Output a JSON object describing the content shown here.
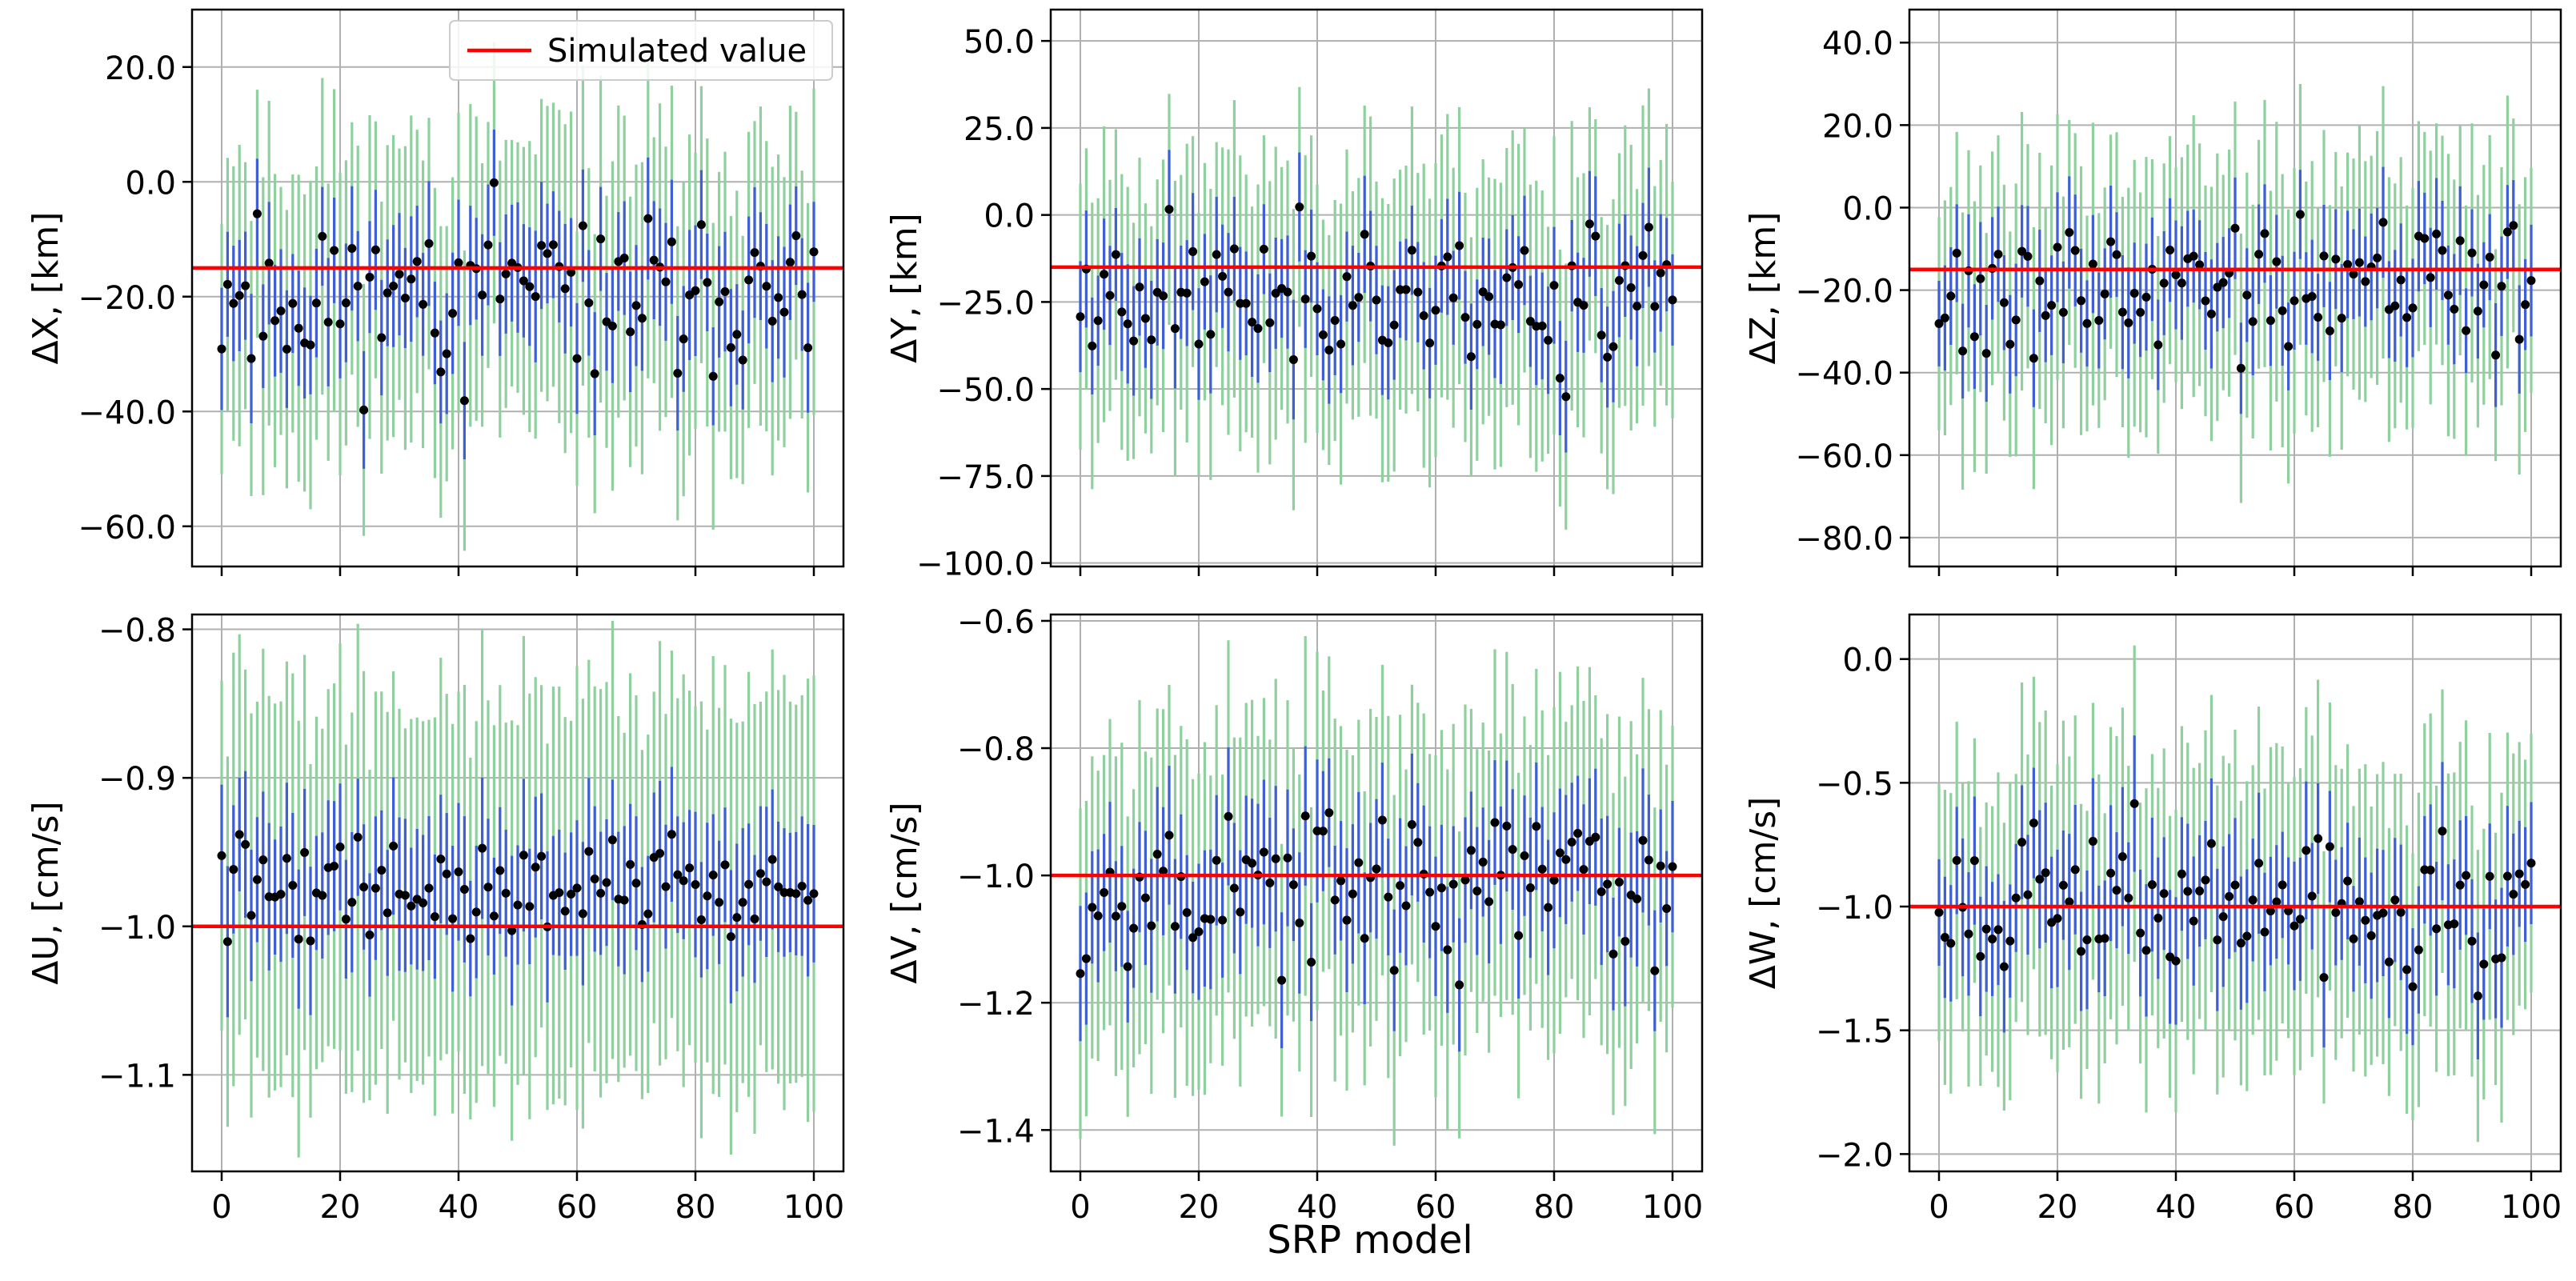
{
  "figure": {
    "shared_xlabel": "SRP model",
    "legend_label": "Simulated value"
  },
  "chart_data": [
    {
      "id": "dx",
      "type": "scatter",
      "ylabel": "ΔX, [km]",
      "xlim": [
        -5,
        105
      ],
      "ylim": [
        -67,
        30
      ],
      "xticks": [
        0,
        20,
        40,
        60,
        80,
        100
      ],
      "xtick_labels": [
        "0",
        "20",
        "40",
        "60",
        "80",
        "100"
      ],
      "yticks": [
        -60,
        -40,
        -20,
        0,
        20
      ],
      "ytick_labels": [
        "−60.0",
        "−40.0",
        "−20.0",
        "0.0",
        "20.0"
      ],
      "simulated_value": -15,
      "grid": true,
      "legend": "top-right",
      "center": -20,
      "spread": 9,
      "sigma_inner": 10,
      "sigma_outer": 25,
      "seed": 11
    },
    {
      "id": "dy",
      "type": "scatter",
      "ylabel": "ΔY, [km]",
      "xlim": [
        -5,
        105
      ],
      "ylim": [
        -101,
        59
      ],
      "xticks": [
        0,
        20,
        40,
        60,
        80,
        100
      ],
      "xtick_labels": [
        "0",
        "20",
        "40",
        "60",
        "80",
        "100"
      ],
      "yticks": [
        -100,
        -75,
        -50,
        -25,
        0,
        25,
        50
      ],
      "ytick_labels": [
        "−100.0",
        "−75.0",
        "−50.0",
        "−25.0",
        "0.0",
        "25.0",
        "50.0"
      ],
      "simulated_value": -15,
      "grid": true,
      "center": -22,
      "spread": 14,
      "sigma_inner": 15,
      "sigma_outer": 38,
      "seed": 23
    },
    {
      "id": "dz",
      "type": "scatter",
      "ylabel": "ΔZ, [km]",
      "xlim": [
        -5,
        105
      ],
      "ylim": [
        -87,
        48
      ],
      "xticks": [
        0,
        20,
        40,
        60,
        80,
        100
      ],
      "xtick_labels": [
        "0",
        "20",
        "40",
        "60",
        "80",
        "100"
      ],
      "yticks": [
        -80,
        -60,
        -40,
        -20,
        0,
        20,
        40
      ],
      "ytick_labels": [
        "−80.0",
        "−60.0",
        "−40.0",
        "−20.0",
        "0.0",
        "20.0",
        "40.0"
      ],
      "simulated_value": -15,
      "grid": true,
      "center": -20,
      "spread": 11,
      "sigma_inner": 12,
      "sigma_outer": 30,
      "seed": 37
    },
    {
      "id": "du",
      "type": "scatter",
      "ylabel": "ΔU, [cm/s]",
      "xlim": [
        -5,
        105
      ],
      "ylim": [
        -1.165,
        -0.79
      ],
      "xticks": [
        0,
        20,
        40,
        60,
        80,
        100
      ],
      "xtick_labels": [
        "0",
        "20",
        "40",
        "60",
        "80",
        "100"
      ],
      "yticks": [
        -1.1,
        -1.0,
        -0.9,
        -0.8
      ],
      "ytick_labels": [
        "−1.1",
        "−1.0",
        "−0.9",
        "−0.8"
      ],
      "simulated_value": -1.0,
      "grid": true,
      "center": -0.975,
      "spread": 0.022,
      "sigma_inner": 0.045,
      "sigma_outer": 0.13,
      "seed": 41
    },
    {
      "id": "dv",
      "type": "scatter",
      "ylabel": "ΔV, [cm/s]",
      "xlim": [
        -5,
        105
      ],
      "ylim": [
        -1.465,
        -0.59
      ],
      "xticks": [
        0,
        20,
        40,
        60,
        80,
        100
      ],
      "xtick_labels": [
        "0",
        "20",
        "40",
        "60",
        "80",
        "100"
      ],
      "yticks": [
        -1.4,
        -1.2,
        -1.0,
        -0.8,
        -0.6
      ],
      "ytick_labels": [
        "−1.4",
        "−1.2",
        "−1.0",
        "−0.8",
        "−0.6"
      ],
      "simulated_value": -1.0,
      "grid": true,
      "center": -1.02,
      "spread": 0.08,
      "sigma_inner": 0.1,
      "sigma_outer": 0.25,
      "seed": 53
    },
    {
      "id": "dw",
      "type": "scatter",
      "ylabel": "ΔW, [cm/s]",
      "xlim": [
        -5,
        105
      ],
      "ylim": [
        -2.07,
        0.18
      ],
      "xticks": [
        0,
        20,
        40,
        60,
        80,
        100
      ],
      "xtick_labels": [
        "0",
        "20",
        "40",
        "60",
        "80",
        "100"
      ],
      "yticks": [
        -2.0,
        -1.5,
        -1.0,
        -0.5,
        0.0
      ],
      "ytick_labels": [
        "−2.0",
        "−1.5",
        "−1.0",
        "−0.5",
        "0.0"
      ],
      "simulated_value": -1.0,
      "grid": true,
      "center": -0.97,
      "spread": 0.18,
      "sigma_inner": 0.25,
      "sigma_outer": 0.58,
      "seed": 67
    }
  ],
  "colors": {
    "simulated_line": "#ff0000",
    "inner_error": "#3f5fd6",
    "outer_error": "#8fd19e",
    "point": "#000000",
    "grid": "#b0b0b0",
    "axes": "#000000"
  }
}
